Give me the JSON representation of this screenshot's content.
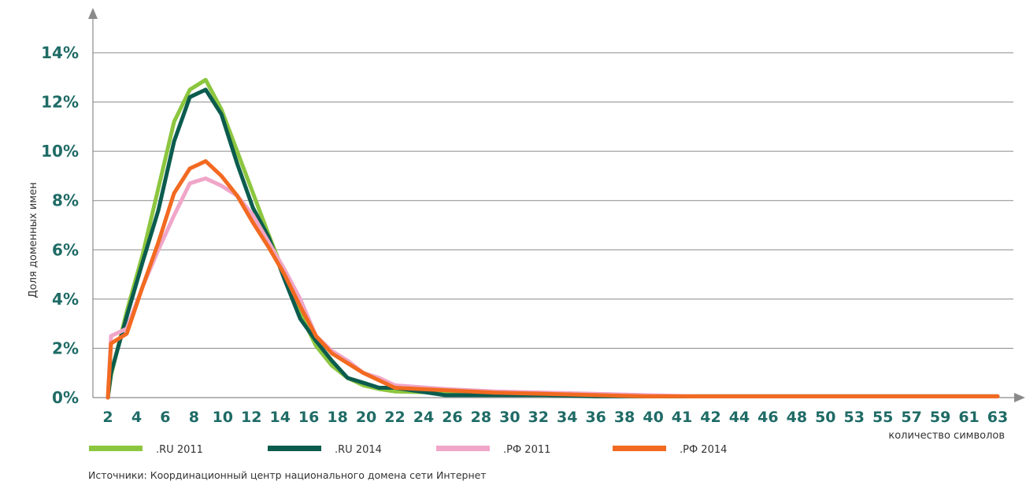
{
  "chart_data": {
    "type": "line",
    "xlabel": "количество символов",
    "ylabel": "Доля доменных имен",
    "ylim": [
      0,
      14
    ],
    "yticks": [
      "0%",
      "2%",
      "4%",
      "6%",
      "8%",
      "10%",
      "12%",
      "14%"
    ],
    "x": [
      "2",
      "4",
      "6",
      "8",
      "10",
      "12",
      "14",
      "16",
      "18",
      "20",
      "22",
      "24",
      "26",
      "28",
      "30",
      "32",
      "34",
      "36",
      "38",
      "40",
      "41",
      "42",
      "44",
      "46",
      "48",
      "50",
      "53",
      "55",
      "57",
      "59",
      "61",
      "63"
    ],
    "grid": true,
    "legend_position": "bottom",
    "series": [
      {
        "name": ".RU 2011",
        "color": "#8cc63f",
        "values": [
          0,
          0.9,
          3.5,
          5.8,
          8.5,
          11.2,
          12.5,
          12.9,
          11.7,
          10.0,
          8.3,
          6.6,
          5.0,
          3.4,
          2.1,
          1.3,
          0.8,
          0.5,
          0.35,
          0.25,
          0.2,
          0.15,
          0.1,
          0.1,
          0.05,
          0.05,
          0.05,
          0.05,
          0.05,
          0.05,
          0.05,
          0.05
        ]
      },
      {
        "name": ".RU 2014",
        "color": "#0b5c4e",
        "values": [
          0,
          1.0,
          3.3,
          5.5,
          7.6,
          10.4,
          12.2,
          12.5,
          11.5,
          9.5,
          7.7,
          6.5,
          4.8,
          3.2,
          2.3,
          1.5,
          0.8,
          0.6,
          0.4,
          0.4,
          0.1,
          0.1,
          0.1,
          0.05,
          0.05,
          0.05,
          0.05,
          0.05,
          0.05,
          0.05,
          0.05,
          0.05
        ]
      },
      {
        "name": ".РФ 2011",
        "color": "#f0a6c8",
        "values": [
          0,
          2.5,
          2.8,
          4.5,
          6.0,
          7.4,
          8.7,
          8.9,
          8.6,
          8.2,
          7.4,
          6.3,
          5.2,
          4.0,
          2.5,
          1.9,
          1.5,
          1.0,
          0.8,
          0.5,
          0.35,
          0.25,
          0.2,
          0.15,
          0.1,
          0.05,
          0.05,
          0.05,
          0.05,
          0.05,
          0.05,
          0.05
        ]
      },
      {
        "name": ".РФ 2014",
        "color": "#f26a21",
        "values": [
          0,
          2.2,
          2.6,
          4.5,
          6.3,
          8.3,
          9.3,
          9.6,
          9.0,
          8.2,
          7.1,
          6.1,
          5.0,
          3.7,
          2.5,
          1.8,
          1.4,
          1.0,
          0.7,
          0.4,
          0.3,
          0.2,
          0.15,
          0.1,
          0.05,
          0.05,
          0.05,
          0.05,
          0.05,
          0.05,
          0.05,
          0.05
        ]
      }
    ]
  },
  "source": "Источники: Координационный центр национального домена сети Интернет"
}
